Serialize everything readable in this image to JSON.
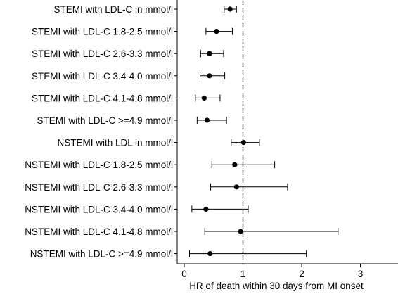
{
  "chart_data": {
    "type": "scatter",
    "subtype": "forest-plot",
    "title": "",
    "xlabel": "HR of death within 30 days from MI onset",
    "ylabel": "",
    "xlim": [
      -0.15,
      3.6
    ],
    "xticks": [
      0,
      1,
      2,
      3
    ],
    "xtick_labels": [
      "0",
      "1",
      "2",
      "3"
    ],
    "reference_line": 1,
    "reference_line_style": "dashed",
    "grid": false,
    "marker_color": "#000000",
    "rows": [
      {
        "label": "STEMI with LDL-C in mmol/l",
        "hr": 0.78,
        "lower": 0.68,
        "upper": 0.89
      },
      {
        "label": "STEMI with LDL-C 1.8-2.5 mmol/l",
        "hr": 0.55,
        "lower": 0.37,
        "upper": 0.82
      },
      {
        "label": "STEMI with LDL-C 2.6-3.3 mmol/l",
        "hr": 0.43,
        "lower": 0.28,
        "upper": 0.67
      },
      {
        "label": "STEMI with LDL-C 3.4-4.0 mmol/l",
        "hr": 0.43,
        "lower": 0.27,
        "upper": 0.69
      },
      {
        "label": "STEMI with LDL-C 4.1-4.8 mmol/l",
        "hr": 0.34,
        "lower": 0.19,
        "upper": 0.61
      },
      {
        "label": "STEMI with LDL-C >=4.9 mmol/l",
        "hr": 0.39,
        "lower": 0.22,
        "upper": 0.72
      },
      {
        "label": "NSTEMI with LDL in mmol/l",
        "hr": 1.01,
        "lower": 0.8,
        "upper": 1.28
      },
      {
        "label": "NSTEMI with LDL-C 1.8-2.5 mmol/l",
        "hr": 0.86,
        "lower": 0.47,
        "upper": 1.54
      },
      {
        "label": "NSTEMI with LDL-C 2.6-3.3 mmol/l",
        "hr": 0.89,
        "lower": 0.45,
        "upper": 1.76
      },
      {
        "label": "NSTEMI with LDL-C 3.4-4.0 mmol/l",
        "hr": 0.37,
        "lower": 0.13,
        "upper": 1.09
      },
      {
        "label": "NSTEMI with LDL-C 4.1-4.8 mmol/l",
        "hr": 0.96,
        "lower": 0.35,
        "upper": 2.62
      },
      {
        "label": "NSTEMI with LDL-C >=4.9 mmol/l",
        "hr": 0.44,
        "lower": 0.09,
        "upper": 2.08
      }
    ]
  }
}
